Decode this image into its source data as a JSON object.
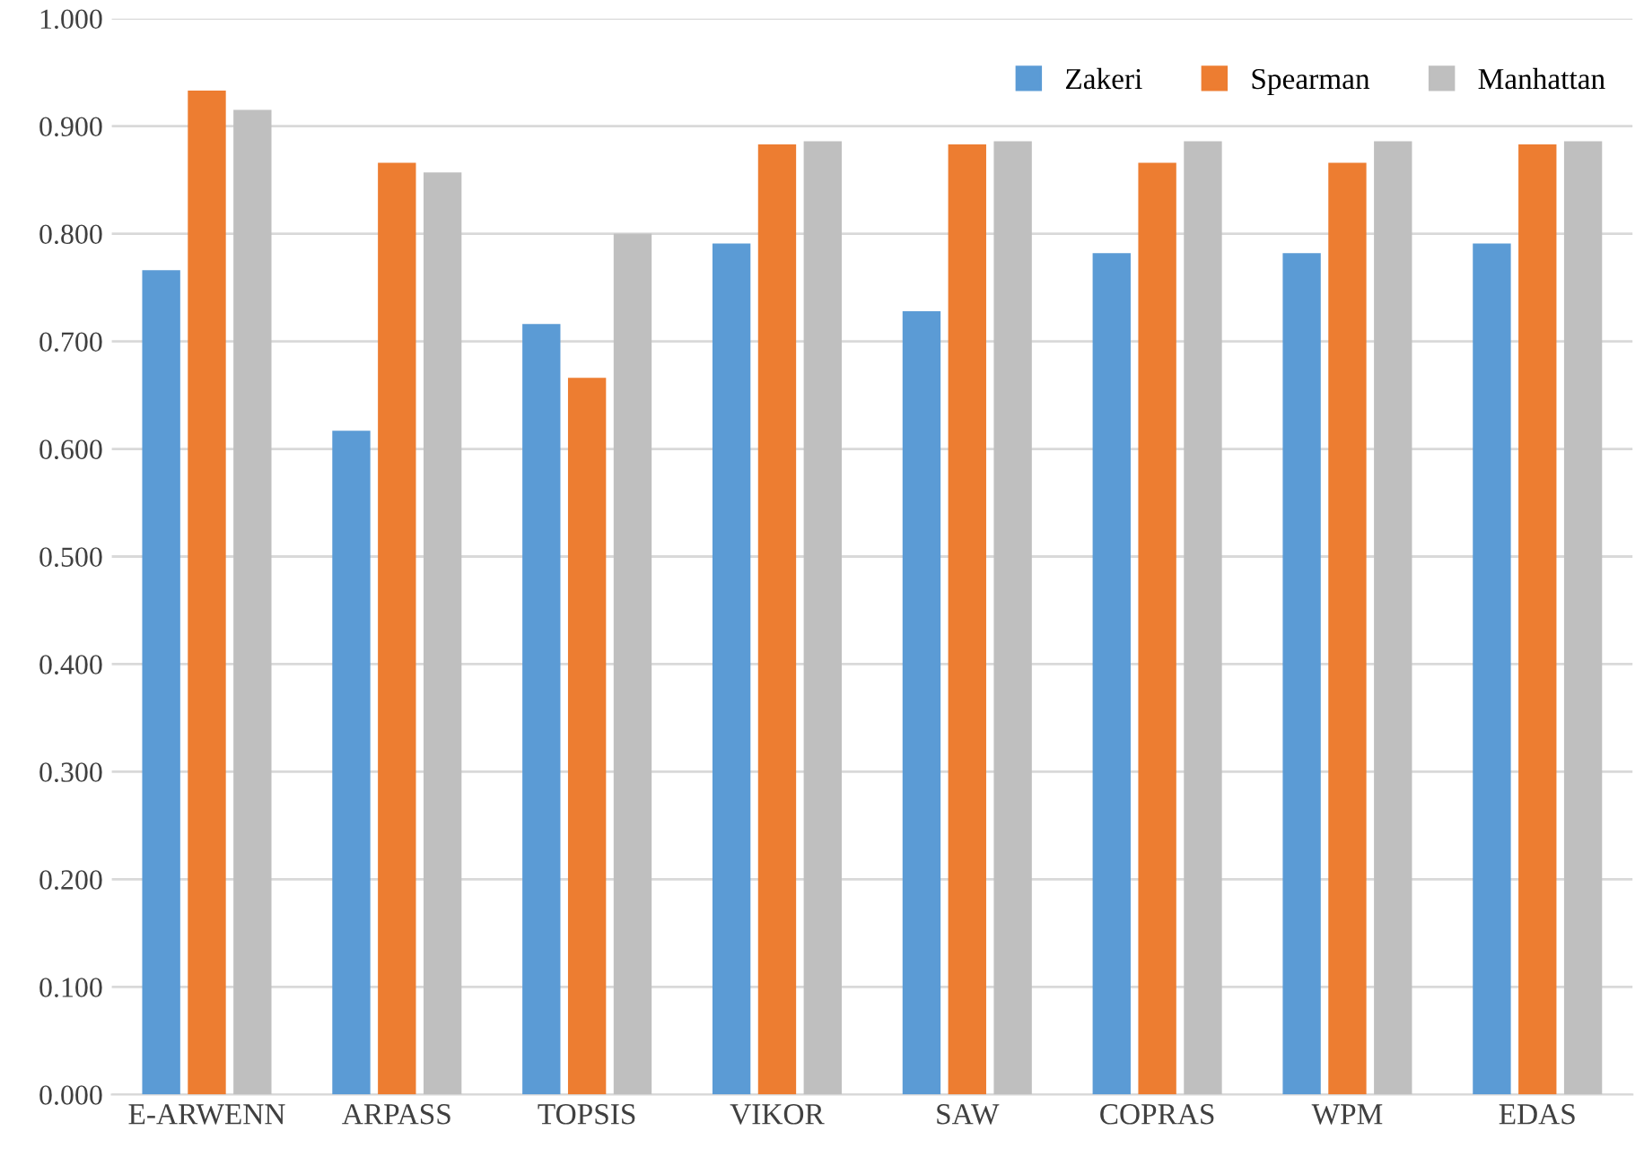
{
  "chart_data": {
    "type": "bar",
    "categories": [
      "E-ARWENN",
      "ARPASS",
      "TOPSIS",
      "VIKOR",
      "SAW",
      "COPRAS",
      "WPM",
      "EDAS"
    ],
    "series": [
      {
        "name": "Zakeri",
        "color": "#5b9bd5",
        "values": [
          0.766,
          0.617,
          0.716,
          0.791,
          0.728,
          0.782,
          0.782,
          0.791
        ]
      },
      {
        "name": "Spearman",
        "color": "#ed7d31",
        "values": [
          0.933,
          0.866,
          0.666,
          0.883,
          0.883,
          0.866,
          0.866,
          0.883
        ]
      },
      {
        "name": "Manhattan",
        "color": "#bfbfbf",
        "values": [
          0.915,
          0.857,
          0.8,
          0.886,
          0.886,
          0.886,
          0.886,
          0.886
        ]
      }
    ],
    "ylim": [
      0,
      1
    ],
    "yticks": [
      {
        "value": 0,
        "label": "0.000"
      },
      {
        "value": 0.1,
        "label": "0.100"
      },
      {
        "value": 0.2,
        "label": "0.200"
      },
      {
        "value": 0.3,
        "label": "0.300"
      },
      {
        "value": 0.4,
        "label": "0.400"
      },
      {
        "value": 0.5,
        "label": "0.500"
      },
      {
        "value": 0.6,
        "label": "0.600"
      },
      {
        "value": 0.7,
        "label": "0.700"
      },
      {
        "value": 0.8,
        "label": "0.800"
      },
      {
        "value": 0.9,
        "label": "0.900"
      },
      {
        "value": 1,
        "label": "1.000"
      }
    ],
    "grid": "y",
    "legend": "top right"
  }
}
